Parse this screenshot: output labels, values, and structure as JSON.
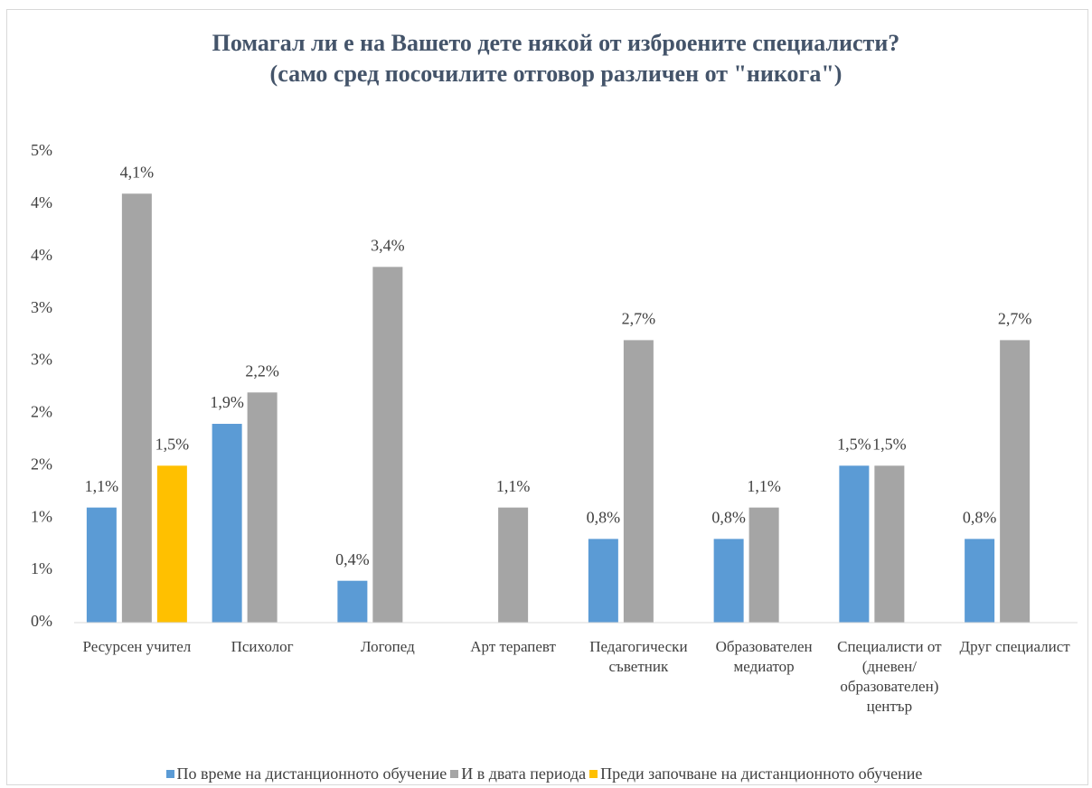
{
  "chart_data": {
    "type": "bar",
    "title": [
      "Помагал ли е на Вашето дете някой от изброените специалисти?",
      "(само сред посочилите отговор различен от \"никога\")"
    ],
    "categories": [
      "Ресурсен учител",
      "Психолог",
      "Логопед",
      "Арт терапевт",
      "Педагогически съветник",
      "Образователен медиатор",
      "Специалисти от (дневен/ образователен) център",
      "Друг специалист"
    ],
    "series": [
      {
        "name": "По време на дистанционното обучение",
        "color": "#5b9bd5",
        "values": [
          1.1,
          1.9,
          0.4,
          null,
          0.8,
          0.8,
          1.5,
          0.8
        ],
        "value_labels": [
          "1,1%",
          "1,9%",
          "0,4%",
          null,
          "0,8%",
          "0,8%",
          "1,5%",
          "0,8%"
        ]
      },
      {
        "name": "И в двата периода",
        "color": "#a5a5a5",
        "values": [
          4.1,
          2.2,
          3.4,
          1.1,
          2.7,
          1.1,
          1.5,
          2.7
        ],
        "value_labels": [
          "4,1%",
          "2,2%",
          "3,4%",
          "1,1%",
          "2,7%",
          "1,1%",
          "1,5%",
          "2,7%"
        ]
      },
      {
        "name": "Преди започване на дистанционното обучение",
        "color": "#ffc000",
        "values": [
          1.5,
          null,
          null,
          null,
          null,
          null,
          null,
          null
        ],
        "value_labels": [
          "1,5%",
          null,
          null,
          null,
          null,
          null,
          null,
          null
        ]
      }
    ],
    "ylim": [
      0,
      4.5
    ],
    "yticks": [
      {
        "value": 0,
        "label": "0%"
      },
      {
        "value": 0.5,
        "label": "1%"
      },
      {
        "value": 1,
        "label": "1%"
      },
      {
        "value": 1.5,
        "label": "2%"
      },
      {
        "value": 2,
        "label": "2%"
      },
      {
        "value": 2.5,
        "label": "3%"
      },
      {
        "value": 3,
        "label": "3%"
      },
      {
        "value": 3.5,
        "label": "4%"
      },
      {
        "value": 4,
        "label": "4%"
      },
      {
        "value": 4.5,
        "label": "5%"
      }
    ],
    "grid": false,
    "legend": "bottom"
  }
}
